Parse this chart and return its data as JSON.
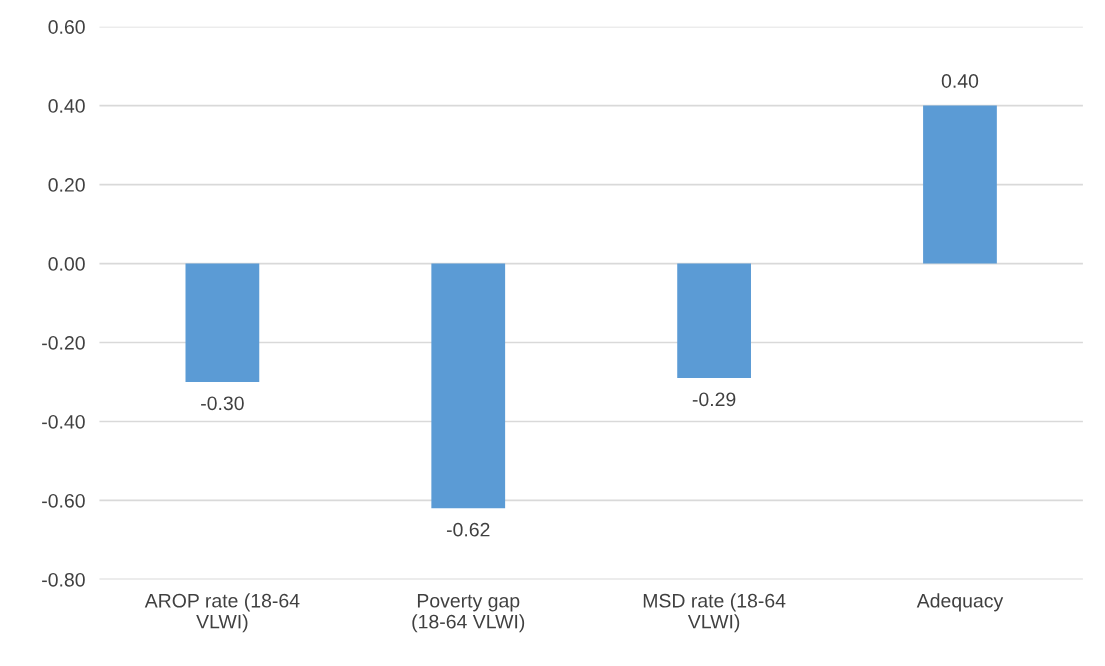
{
  "chart_data": {
    "type": "bar",
    "categories": [
      "AROP rate (18-64 VLWI)",
      "Poverty gap (18-64 VLWI)",
      "MSD rate (18-64 VLWI)",
      "Adequacy"
    ],
    "values": [
      -0.3,
      -0.62,
      -0.29,
      0.4
    ],
    "color": "#5b9bd5",
    "value_labels": [
      "-0.30",
      "-0.62",
      "-0.29",
      "0.40"
    ],
    "ylim": [
      -0.8,
      0.6
    ],
    "yticks": [
      {
        "value": -0.8,
        "label": "-0.80"
      },
      {
        "value": -0.6,
        "label": "-0.60"
      },
      {
        "value": -0.4,
        "label": "-0.40"
      },
      {
        "value": -0.2,
        "label": "-0.20"
      },
      {
        "value": 0,
        "label": "0.00"
      },
      {
        "value": 0.2,
        "label": "0.20"
      },
      {
        "value": 0.4,
        "label": "0.40"
      },
      {
        "value": 0.6,
        "label": "0.60"
      }
    ],
    "grid": "y"
  }
}
